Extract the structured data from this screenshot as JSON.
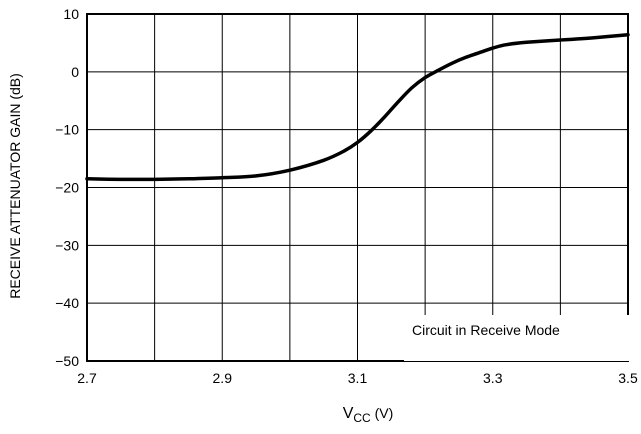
{
  "chart_data": {
    "type": "line",
    "xlabel_main": "V",
    "xlabel_sub": "CC",
    "xlabel_unit": " (V)",
    "ylabel": "RECEIVE ATTENUATOR GAIN (dB)",
    "xlim": [
      2.7,
      3.5
    ],
    "ylim": [
      -50,
      10
    ],
    "grid": true,
    "x_ticks": [
      2.7,
      2.8,
      2.9,
      3.0,
      3.1,
      3.2,
      3.3,
      3.4,
      3.5
    ],
    "x_tick_labels": [
      "2.7",
      "",
      "2.9",
      "",
      "3.1",
      "",
      "3.3",
      "",
      "3.5"
    ],
    "y_ticks": [
      10,
      0,
      -10,
      -20,
      -30,
      -40,
      -50
    ],
    "y_tick_labels": [
      "10",
      "0",
      "−10",
      "−20",
      "−30",
      "−40",
      "−50"
    ],
    "annotation": "Circuit in Receive Mode",
    "series": [
      {
        "x": [
          2.7,
          2.75,
          2.8,
          2.85,
          2.9,
          2.95,
          3.0,
          3.05,
          3.08,
          3.1,
          3.12,
          3.14,
          3.16,
          3.18,
          3.2,
          3.22,
          3.24,
          3.26,
          3.28,
          3.3,
          3.32,
          3.35,
          3.4,
          3.45,
          3.5
        ],
        "y": [
          -18.5,
          -18.6,
          -18.6,
          -18.5,
          -18.3,
          -18.0,
          -17.0,
          -15.3,
          -13.7,
          -12.2,
          -10.2,
          -7.8,
          -5.2,
          -2.8,
          -1.0,
          0.3,
          1.5,
          2.5,
          3.3,
          4.1,
          4.7,
          5.1,
          5.5,
          5.9,
          6.4
        ]
      }
    ]
  }
}
